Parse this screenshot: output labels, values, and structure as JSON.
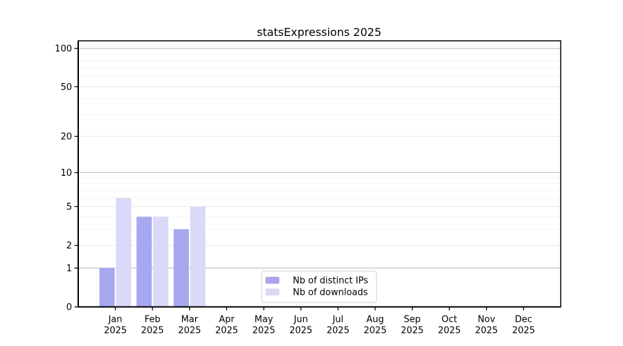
{
  "title": "statsExpressions 2025",
  "colors": {
    "distinct_ips": "#a7a7f0",
    "downloads": "#d9d9f8",
    "grid_power_of_ten": "#c4c4c4",
    "grid_major": "#e7e7e7",
    "grid_minor": "#f3f3f3",
    "axis": "#000000",
    "text": "#000000",
    "legend_border": "#cccccc",
    "legend_bg": "#ffffff"
  },
  "legend": {
    "items": [
      {
        "label": "Nb of distinct IPs",
        "color_key": "distinct_ips"
      },
      {
        "label": "Nb of downloads",
        "color_key": "downloads"
      }
    ]
  },
  "chart_data": {
    "type": "bar",
    "title": "statsExpressions 2025",
    "categories": [
      "Jan",
      "Feb",
      "Mar",
      "Apr",
      "May",
      "Jun",
      "Jul",
      "Aug",
      "Sep",
      "Oct",
      "Nov",
      "Dec"
    ],
    "category_year": "2025",
    "series": [
      {
        "name": "Nb of distinct IPs",
        "values": [
          1,
          4,
          3,
          0,
          0,
          0,
          0,
          0,
          0,
          0,
          0,
          0
        ]
      },
      {
        "name": "Nb of downloads",
        "values": [
          6,
          4,
          5,
          0,
          0,
          0,
          0,
          0,
          0,
          0,
          0,
          0
        ]
      }
    ],
    "xlabel": "",
    "ylabel": "",
    "y_scale": "symlog-log1p",
    "y_ticks": [
      0,
      1,
      2,
      5,
      10,
      20,
      50,
      100
    ],
    "y_minor_ticks": [
      3,
      4,
      6,
      7,
      8,
      9,
      30,
      40,
      60,
      70,
      80,
      90
    ],
    "ylim": [
      0,
      118
    ],
    "grid": true,
    "legend_position": "bottom-center"
  }
}
